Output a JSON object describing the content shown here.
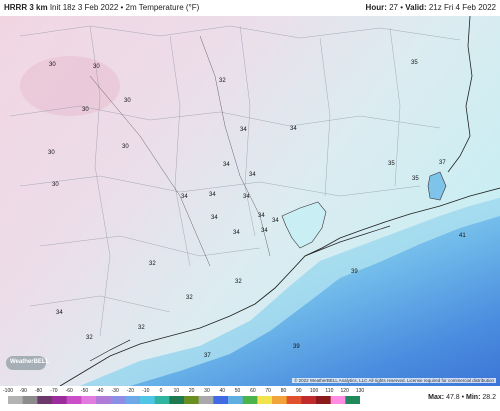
{
  "header": {
    "model": "HRRR 3 km",
    "init": "Init 18z 3 Feb 2022 • 2m Temperature (°F)",
    "hour_label": "Hour:",
    "hour_value": "27",
    "valid_label": "Valid:",
    "valid_value": "21z Fri 4 Feb 2022"
  },
  "map": {
    "temperature_labels": [
      "30",
      "30",
      "30",
      "30",
      "30",
      "30",
      "30",
      "32",
      "34",
      "34",
      "34",
      "34",
      "34",
      "34",
      "34",
      "34",
      "34",
      "34",
      "34",
      "34",
      "32",
      "32",
      "32",
      "34",
      "32",
      "32",
      "37",
      "39",
      "39",
      "41",
      "35",
      "35",
      "35",
      "37"
    ]
  },
  "logo_text": "WeatherBELL",
  "copyright": "© 2022 WeatherBELL Analytics, LLC All rights reserved. License required for commercial distribution",
  "colorbar": {
    "ticks": [
      "-100",
      "-90",
      "-80",
      "-70",
      "-60",
      "-50",
      "-40",
      "-30",
      "-20",
      "-10",
      "0",
      "10",
      "20",
      "30",
      "40",
      "50",
      "60",
      "70",
      "80",
      "90",
      "100",
      "110",
      "120",
      "130"
    ],
    "colors": [
      "#b3b3b3",
      "#8c8c8c",
      "#6b3a6b",
      "#9c2e9c",
      "#c94fc9",
      "#e07be0",
      "#b07bd6",
      "#8e8ee6",
      "#6fa8e6",
      "#4fc6e6",
      "#2fb5a0",
      "#1f7a4f",
      "#6b8e23",
      "#a9a9a9",
      "#4169e1",
      "#5fb0e0",
      "#4cb24c",
      "#f2e34c",
      "#f2a33a",
      "#e0522b",
      "#c22b2b",
      "#8b1a1a",
      "#ff8ce0",
      "#1e8a5a"
    ],
    "max_label": "Max:",
    "max_value": "47.8",
    "min_label": "Min:",
    "min_value": "28.2"
  }
}
